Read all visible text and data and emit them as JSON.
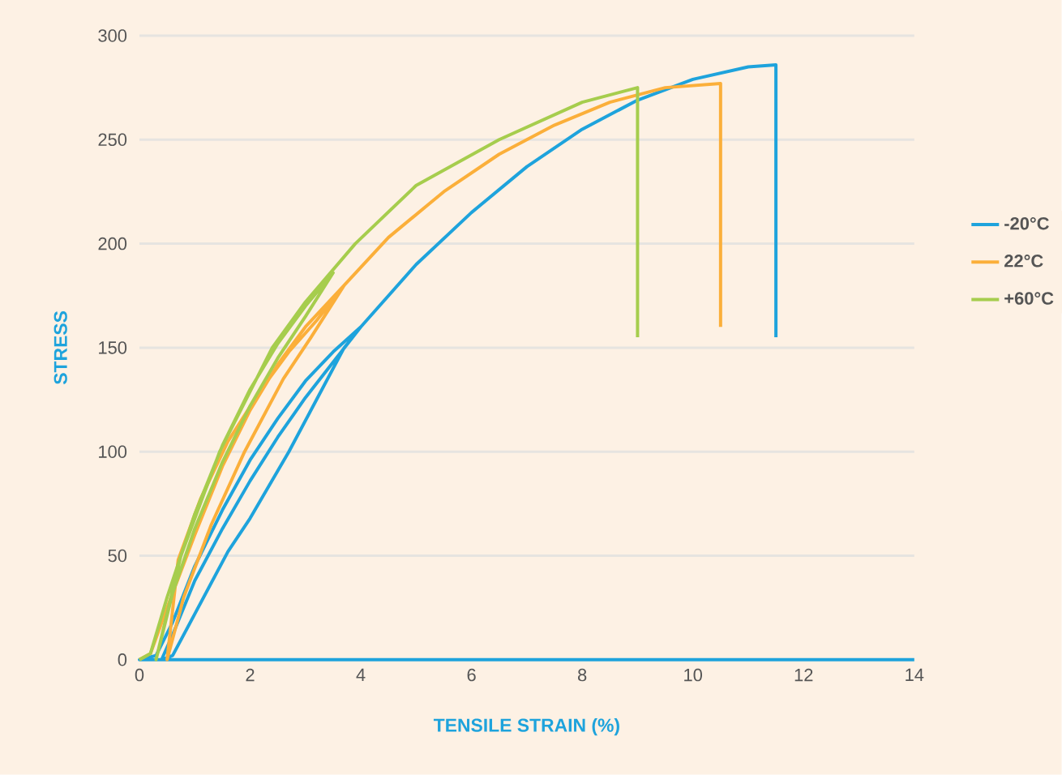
{
  "chart_data": {
    "type": "line",
    "xlabel": "TENSILE STRAIN (%)",
    "ylabel": "STRESS",
    "xlim": [
      0,
      14
    ],
    "ylim": [
      0,
      300
    ],
    "xticks": [
      0,
      2,
      4,
      6,
      8,
      10,
      12,
      14
    ],
    "yticks": [
      0,
      50,
      100,
      150,
      200,
      250,
      300
    ],
    "grid": "y",
    "legend": "right",
    "marker": "none",
    "line_style": "solid",
    "series": [
      {
        "name": "-20°C",
        "color": "#1ea3dc",
        "x": [
          14,
          0,
          0.3,
          0.6,
          1.0,
          1.5,
          2.0,
          2.5,
          3.0,
          3.5,
          4.0,
          3.5,
          3.0,
          2.5,
          2.0,
          1.5,
          1.0,
          0.6,
          0.4,
          0.6,
          1.0,
          1.6,
          2.0,
          2.7,
          3.2,
          3.7,
          4.0,
          5.0,
          6.0,
          7.0,
          8.0,
          9.0,
          10.0,
          11.0,
          11.5,
          11.5
        ],
        "values": [
          0,
          0,
          2,
          18,
          45,
          72,
          96,
          116,
          134,
          148,
          160,
          143,
          126,
          107,
          86,
          63,
          38,
          12,
          0,
          2,
          22,
          52,
          68,
          100,
          125,
          150,
          160,
          190,
          215,
          237,
          255,
          269,
          279,
          285,
          286,
          155
        ]
      },
      {
        "name": "22°C",
        "color": "#fbaf3a",
        "x": [
          0,
          0.2,
          0.5,
          1.0,
          1.5,
          2.0,
          2.5,
          3.0,
          3.7,
          3.2,
          2.7,
          2.2,
          1.6,
          1.1,
          0.7,
          0.5,
          0.8,
          1.3,
          1.9,
          2.6,
          3.1,
          3.7,
          4.5,
          5.5,
          6.5,
          7.5,
          8.5,
          9.5,
          10.5,
          10.5
        ],
        "values": [
          0,
          3,
          25,
          60,
          93,
          120,
          142,
          160,
          180,
          163,
          148,
          130,
          105,
          77,
          48,
          0,
          30,
          65,
          100,
          135,
          155,
          180,
          203,
          225,
          243,
          257,
          268,
          275,
          277,
          160
        ]
      },
      {
        "name": "+60°C",
        "color": "#a6cd4d",
        "x": [
          0,
          0.2,
          0.5,
          1.0,
          1.5,
          2.0,
          2.5,
          3.0,
          3.5,
          3.0,
          2.5,
          2.0,
          1.5,
          1.0,
          0.6,
          0.3,
          0.75,
          1.45,
          2.4,
          3.0,
          3.9,
          5.0,
          6.5,
          8.0,
          9.0,
          9.0
        ],
        "values": [
          0,
          3,
          30,
          70,
          103,
          130,
          152,
          170,
          186,
          165,
          145,
          122,
          95,
          63,
          32,
          0,
          50,
          100,
          150,
          172,
          200,
          228,
          250,
          268,
          275,
          155
        ]
      }
    ]
  }
}
